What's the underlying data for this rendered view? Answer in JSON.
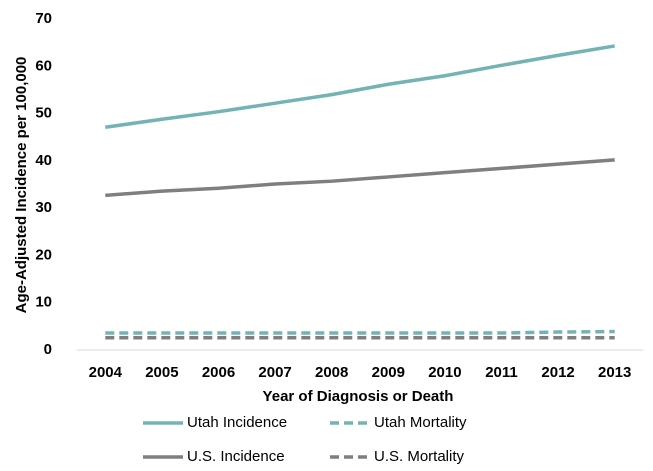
{
  "chart_data": {
    "type": "line",
    "x_label": "Year of Diagnosis or Death",
    "y_label": "Age-Adjusted Incidence per 100,000",
    "categories": [
      "2004",
      "2005",
      "2006",
      "2007",
      "2008",
      "2009",
      "2010",
      "2011",
      "2012",
      "2013"
    ],
    "series": [
      {
        "name": "Utah Incidence",
        "color": "#73b3b5",
        "style": "solid",
        "values": [
          47.1,
          48.8,
          50.4,
          52.2,
          54.0,
          56.2,
          58.0,
          60.2,
          62.3,
          64.3
        ]
      },
      {
        "name": "Utah Mortality",
        "color": "#73b3b5",
        "style": "dashed",
        "values": [
          3.6,
          3.6,
          3.6,
          3.6,
          3.6,
          3.6,
          3.6,
          3.6,
          3.8,
          3.9
        ]
      },
      {
        "name": "U.S. Incidence",
        "color": "#7f7f7f",
        "style": "solid",
        "values": [
          32.7,
          33.6,
          34.2,
          35.1,
          35.7,
          36.6,
          37.5,
          38.4,
          39.3,
          40.2
        ]
      },
      {
        "name": "U.S. Mortality",
        "color": "#7f7f7f",
        "style": "dashed",
        "values": [
          2.6,
          2.6,
          2.6,
          2.6,
          2.6,
          2.6,
          2.6,
          2.6,
          2.6,
          2.6
        ]
      }
    ],
    "ylim": [
      0,
      70
    ],
    "yticks": [
      0,
      10,
      20,
      30,
      40,
      50,
      60,
      70
    ],
    "grid": false,
    "legend": "bottom"
  }
}
